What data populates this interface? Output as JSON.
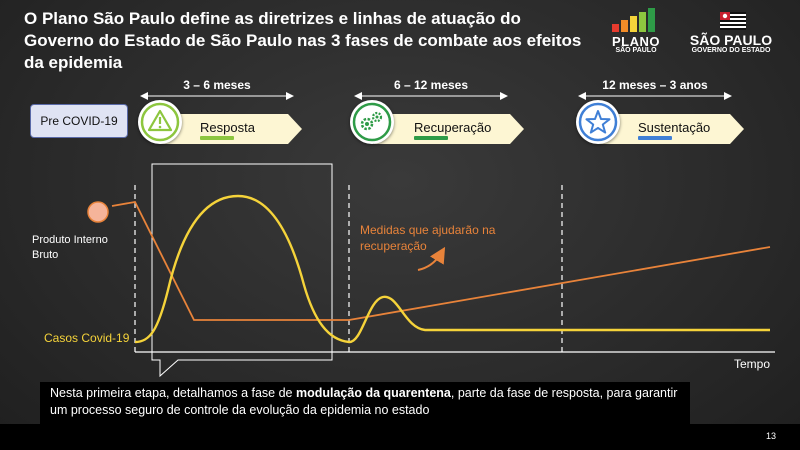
{
  "title": "O Plano São Paulo define as diretrizes e linhas de atuação do Governo do Estado de São Paulo nas 3 fases de combate aos efeitos da epidemia",
  "logos": {
    "plano_line1": "PLANO",
    "plano_line2": "SÃO PAULO",
    "sp_line1": "SÃO PAULO",
    "sp_line2": "GOVERNO DO ESTADO"
  },
  "pre_covid": "Pre COVID-19",
  "phases": [
    {
      "duration": "3 – 6 meses",
      "name": "Resposta",
      "icon": "warning-icon",
      "accent": "#8dc63f"
    },
    {
      "duration": "6 – 12 meses",
      "name": "Recuperação",
      "icon": "gears-icon",
      "accent": "#2e9b47"
    },
    {
      "duration": "12 meses – 3 anos",
      "name": "Sustentação",
      "icon": "star-icon",
      "accent": "#3f7fd6"
    }
  ],
  "chart_labels": {
    "gdp": "Produto Interno Bruto",
    "cases": "Casos Covid-19",
    "measures": "Medidas que ajudarão na recuperação",
    "time_axis": "Tempo"
  },
  "colors": {
    "cases_curve": "#f5d33a",
    "gdp_curve": "#e8833a",
    "banner_fill": "#fdf6d3"
  },
  "caption": {
    "part1": "Nesta primeira etapa, detalhamos a fase de ",
    "bold": "modulação da quarentena",
    "part2": ", parte da fase de resposta, para garantir um processo seguro de controle da evolução da epidemia no estado"
  },
  "page_number": "13"
}
